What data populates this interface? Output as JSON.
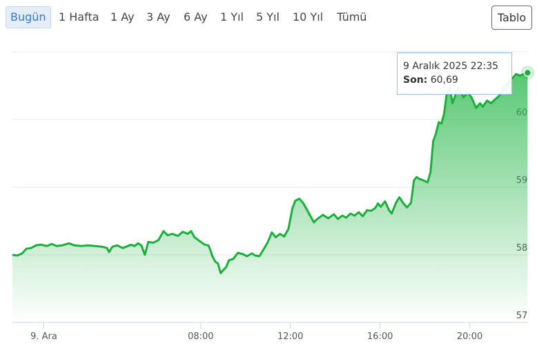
{
  "toolbar": {
    "ranges": [
      "Bugün",
      "1 Hafta",
      "1 Ay",
      "3 Ay",
      "6 Ay",
      "1 Yıl",
      "5 Yıl",
      "10 Yıl",
      "Tümü"
    ],
    "selected": 0,
    "table_button": "Tablo"
  },
  "chart_data": {
    "type": "area",
    "x": [
      -0.4,
      -0.18,
      0.03,
      0.22,
      0.43,
      0.65,
      0.89,
      1.14,
      1.35,
      1.57,
      1.82,
      2.12,
      2.37,
      2.68,
      2.98,
      3.29,
      3.6,
      3.82,
      3.91,
      4.06,
      4.28,
      4.52,
      4.74,
      4.89,
      5.05,
      5.2,
      5.35,
      5.51,
      5.66,
      5.88,
      6.12,
      6.34,
      6.52,
      6.74,
      6.98,
      7.2,
      7.42,
      7.57,
      7.72,
      7.97,
      8.18,
      8.34,
      8.43,
      8.52,
      8.65,
      8.77,
      8.89,
      9.02,
      9.14,
      9.26,
      9.45,
      9.66,
      9.88,
      10.06,
      10.28,
      10.43,
      10.62,
      10.8,
      10.98,
      11.17,
      11.35,
      11.54,
      11.72,
      11.91,
      12.09,
      12.22,
      12.4,
      12.58,
      12.83,
      13.05,
      13.2,
      13.45,
      13.69,
      13.94,
      14.12,
      14.31,
      14.49,
      14.68,
      14.86,
      15.05,
      15.23,
      15.42,
      15.6,
      15.78,
      15.91,
      16.03,
      16.22,
      16.4,
      16.52,
      16.71,
      16.86,
      17.02,
      17.2,
      17.38,
      17.51,
      17.63,
      17.75,
      17.94,
      18.12,
      18.25,
      18.37,
      18.49,
      18.62,
      18.74,
      18.86,
      18.98,
      19.11,
      19.23,
      19.35,
      19.48,
      19.6,
      19.72,
      19.91,
      20.09,
      20.28,
      20.46,
      20.58,
      20.77,
      20.95,
      21.14,
      21.32,
      21.51,
      21.69,
      21.88,
      22.06,
      22.25,
      22.58
    ],
    "values": [
      58.0,
      57.99,
      58.02,
      58.09,
      58.1,
      58.14,
      58.15,
      58.13,
      58.16,
      58.13,
      58.14,
      58.17,
      58.14,
      58.13,
      58.14,
      58.13,
      58.12,
      58.1,
      58.04,
      58.12,
      58.14,
      58.1,
      58.13,
      58.15,
      58.13,
      58.17,
      58.14,
      58.0,
      58.19,
      58.18,
      58.22,
      58.35,
      58.29,
      58.31,
      58.28,
      58.34,
      58.31,
      58.35,
      58.26,
      58.2,
      58.15,
      58.14,
      58.07,
      57.98,
      57.9,
      57.87,
      57.73,
      57.78,
      57.82,
      57.92,
      57.94,
      58.03,
      58.01,
      57.98,
      58.02,
      57.99,
      57.98,
      58.08,
      58.18,
      58.33,
      58.26,
      58.31,
      58.27,
      58.38,
      58.69,
      58.8,
      58.83,
      58.76,
      58.61,
      58.48,
      58.53,
      58.59,
      58.54,
      58.6,
      58.53,
      58.58,
      58.55,
      58.61,
      58.58,
      58.63,
      58.57,
      58.66,
      58.65,
      58.69,
      58.76,
      58.71,
      58.79,
      58.66,
      58.61,
      58.77,
      58.85,
      58.77,
      58.7,
      58.77,
      59.1,
      59.15,
      59.12,
      59.1,
      59.07,
      59.22,
      59.68,
      59.79,
      59.96,
      59.94,
      60.09,
      60.4,
      60.47,
      60.24,
      60.35,
      60.47,
      60.4,
      60.33,
      60.4,
      60.32,
      60.17,
      60.24,
      60.19,
      60.28,
      60.24,
      60.3,
      60.35,
      60.47,
      60.53,
      60.6,
      60.67,
      60.65,
      60.69
    ],
    "color": "#1aaf3a",
    "xlim": [
      -0.4,
      22.6
    ],
    "xticks": [
      {
        "value": 1,
        "label": "9. Ara"
      },
      {
        "value": 8,
        "label": "08:00"
      },
      {
        "value": 12,
        "label": "12:00"
      },
      {
        "value": 16,
        "label": "16:00"
      },
      {
        "value": 20,
        "label": "20:00"
      }
    ],
    "ylim": [
      57,
      61
    ],
    "yticks": [
      57,
      58,
      59,
      60
    ],
    "grid": true,
    "tooltip": {
      "title": "9 Aralık 2025 22:35",
      "label": "Son:",
      "value_label": "60,69"
    }
  }
}
